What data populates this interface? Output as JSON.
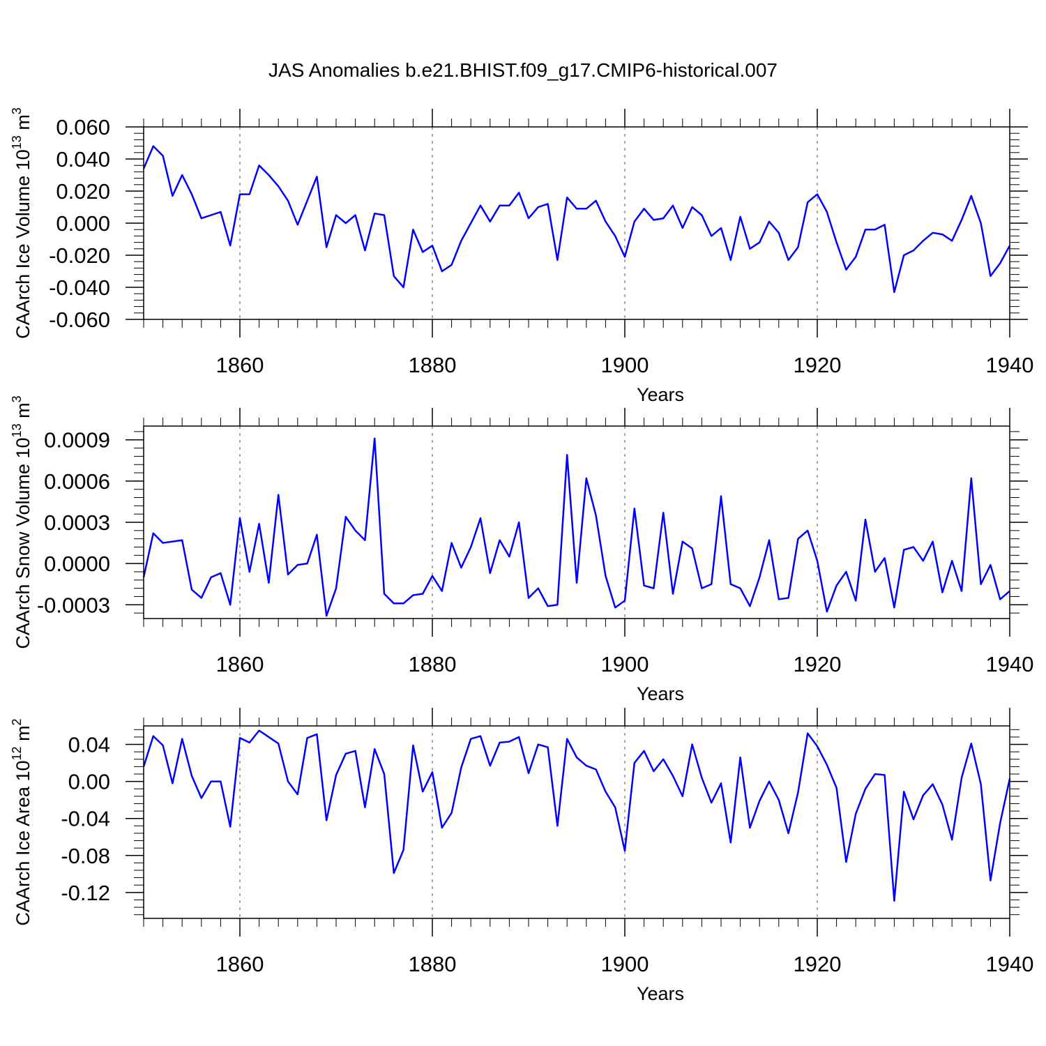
{
  "title": "JAS Anomalies b.e21.BHIST.f09_g17.CMIP6-historical.007",
  "colors": {
    "series": "#0000ff",
    "axis": "#000000",
    "grid": "#555555"
  },
  "chart_data": [
    {
      "type": "line",
      "ylabel": "CAArch Ice Volume 10",
      "ylabel_exp": "13",
      "ylabel_unit": " m",
      "ylabel_unit_exp": "3",
      "xlabel": "Years",
      "xlim": [
        1850,
        1940
      ],
      "ylim": [
        -0.06,
        0.06
      ],
      "x_ticks": [
        1860,
        1880,
        1900,
        1920,
        1940
      ],
      "x_tick_labels": [
        "1860",
        "1880",
        "1900",
        "1920",
        "1940"
      ],
      "y_ticks": [
        -0.06,
        -0.04,
        -0.02,
        0.0,
        0.02,
        0.04,
        0.06
      ],
      "y_tick_labels": [
        "-0.060",
        "-0.040",
        "-0.020",
        "0.000",
        "0.020",
        "0.040",
        "0.060"
      ],
      "series": [
        {
          "name": "CAArch Ice Volume",
          "x_start": 1850,
          "values": [
            0.034,
            0.048,
            0.042,
            0.017,
            0.03,
            0.018,
            0.003,
            0.005,
            0.007,
            -0.014,
            0.018,
            0.018,
            0.036,
            0.03,
            0.023,
            0.014,
            -0.001,
            0.014,
            0.029,
            -0.015,
            0.005,
            0.0,
            0.005,
            -0.017,
            0.006,
            0.005,
            -0.033,
            -0.04,
            -0.004,
            -0.018,
            -0.014,
            -0.03,
            -0.026,
            -0.011,
            0.0,
            0.011,
            0.001,
            0.011,
            0.011,
            0.019,
            0.003,
            0.01,
            0.012,
            -0.023,
            0.016,
            0.009,
            0.009,
            0.014,
            0.001,
            -0.008,
            -0.021,
            0.001,
            0.009,
            0.002,
            0.003,
            0.011,
            -0.003,
            0.01,
            0.005,
            -0.008,
            -0.003,
            -0.023,
            0.004,
            -0.016,
            -0.012,
            0.001,
            -0.006,
            -0.023,
            -0.015,
            0.013,
            0.018,
            0.007,
            -0.012,
            -0.029,
            -0.021,
            -0.004,
            -0.004,
            -0.001,
            -0.043,
            -0.02,
            -0.017,
            -0.011,
            -0.006,
            -0.007,
            -0.011,
            0.002,
            0.017,
            0.0,
            -0.033,
            -0.025,
            -0.014
          ]
        }
      ]
    },
    {
      "type": "line",
      "ylabel": "CAArch Snow Volume 10",
      "ylabel_exp": "13",
      "ylabel_unit": " m",
      "ylabel_unit_exp": "3",
      "xlabel": "Years",
      "xlim": [
        1850,
        1940
      ],
      "ylim": [
        -0.0004,
        0.001
      ],
      "x_ticks": [
        1860,
        1880,
        1900,
        1920,
        1940
      ],
      "x_tick_labels": [
        "1860",
        "1880",
        "1900",
        "1920",
        "1940"
      ],
      "y_ticks": [
        -0.0003,
        0.0,
        0.0003,
        0.0006,
        0.0009
      ],
      "y_tick_labels": [
        "-0.0003",
        "0.0000",
        "0.0003",
        "0.0006",
        "0.0009"
      ],
      "series": [
        {
          "name": "CAArch Snow Volume",
          "x_start": 1850,
          "values": [
            -0.0001,
            0.00022,
            0.00015,
            0.00016,
            0.00017,
            -0.00019,
            -0.00025,
            -0.0001,
            -7e-05,
            -0.0003,
            0.00033,
            -6e-05,
            0.00029,
            -0.00014,
            0.0005,
            -8e-05,
            -1e-05,
            0.0,
            0.00021,
            -0.00038,
            -0.00018,
            0.00034,
            0.00024,
            0.00017,
            0.00091,
            -0.00022,
            -0.00029,
            -0.00029,
            -0.00023,
            -0.00022,
            -9e-05,
            -0.0002,
            0.00015,
            -3e-05,
            0.00012,
            0.00033,
            -7e-05,
            0.00017,
            5e-05,
            0.0003,
            -0.00025,
            -0.00018,
            -0.00031,
            -0.0003,
            0.00079,
            -0.00014,
            0.00062,
            0.00035,
            -9e-05,
            -0.00032,
            -0.00027,
            0.0004,
            -0.00016,
            -0.00018,
            0.00037,
            -0.00022,
            0.00016,
            0.00011,
            -0.00018,
            -0.00015,
            0.00049,
            -0.00015,
            -0.00018,
            -0.00031,
            -0.0001,
            0.00017,
            -0.00026,
            -0.00025,
            0.00018,
            0.00024,
            2e-05,
            -0.00035,
            -0.00016,
            -6e-05,
            -0.00027,
            0.00032,
            -6e-05,
            4e-05,
            -0.00032,
            0.0001,
            0.00012,
            2e-05,
            0.00016,
            -0.00021,
            2e-05,
            -0.0002,
            0.00062,
            -0.00015,
            -1e-05,
            -0.00026,
            -0.0002
          ]
        }
      ]
    },
    {
      "type": "line",
      "ylabel": "CAArch Ice Area 10",
      "ylabel_exp": "12",
      "ylabel_unit": " m",
      "ylabel_unit_exp": "2",
      "xlabel": "Years",
      "xlim": [
        1850,
        1940
      ],
      "ylim": [
        -0.148,
        0.06
      ],
      "x_ticks": [
        1860,
        1880,
        1900,
        1920,
        1940
      ],
      "x_tick_labels": [
        "1860",
        "1880",
        "1900",
        "1920",
        "1940"
      ],
      "y_ticks": [
        -0.12,
        -0.08,
        -0.04,
        0.0,
        0.04
      ],
      "y_tick_labels": [
        "-0.12",
        "-0.08",
        "-0.04",
        "0.00",
        "0.04"
      ],
      "series": [
        {
          "name": "CAArch Ice Area",
          "x_start": 1850,
          "values": [
            0.016,
            0.049,
            0.039,
            -0.002,
            0.046,
            0.006,
            -0.018,
            0.0,
            0.0,
            -0.049,
            0.047,
            0.042,
            0.055,
            0.048,
            0.041,
            0.0,
            -0.014,
            0.047,
            0.051,
            -0.042,
            0.007,
            0.03,
            0.033,
            -0.028,
            0.035,
            0.008,
            -0.099,
            -0.074,
            0.039,
            -0.011,
            0.01,
            -0.05,
            -0.034,
            0.015,
            0.046,
            0.049,
            0.017,
            0.042,
            0.043,
            0.048,
            0.009,
            0.04,
            0.037,
            -0.048,
            0.046,
            0.026,
            0.017,
            0.013,
            -0.011,
            -0.028,
            -0.075,
            0.02,
            0.033,
            0.011,
            0.024,
            0.006,
            -0.016,
            0.04,
            0.004,
            -0.023,
            -0.002,
            -0.066,
            0.026,
            -0.05,
            -0.021,
            0.0,
            -0.02,
            -0.056,
            -0.012,
            0.052,
            0.038,
            0.018,
            -0.007,
            -0.087,
            -0.035,
            -0.008,
            0.008,
            0.007,
            -0.129,
            -0.011,
            -0.041,
            -0.015,
            -0.003,
            -0.025,
            -0.063,
            0.004,
            0.041,
            -0.003,
            -0.107,
            -0.045,
            0.003
          ]
        }
      ]
    }
  ]
}
